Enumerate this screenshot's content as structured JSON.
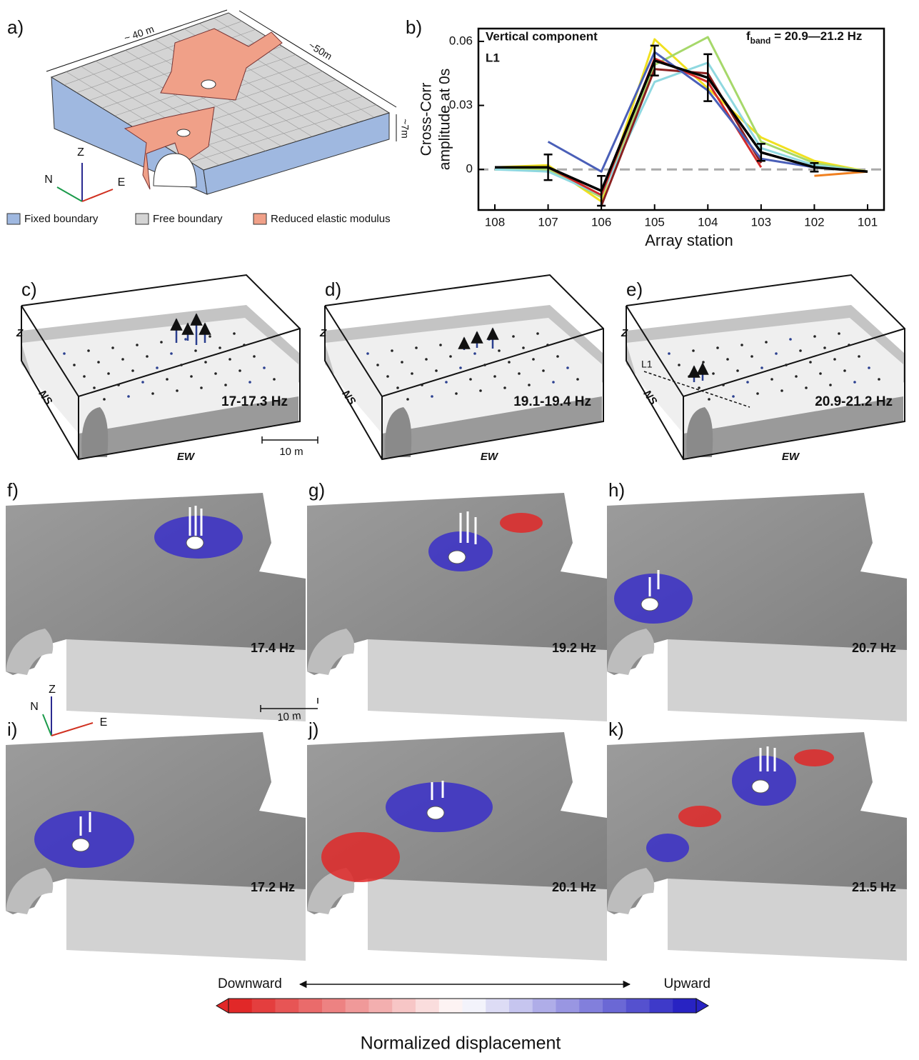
{
  "chart_data": {
    "type": "line",
    "label": "b)",
    "annotations": [
      "Vertical component",
      "L1"
    ],
    "band_label": [
      "f",
      "band",
      " = 20.9—21.2 Hz"
    ],
    "ylabel": [
      "Cross-Corr",
      "amplitude at 0s"
    ],
    "xlabel": "Array station",
    "categories": [
      "108",
      "107",
      "106",
      "105",
      "104",
      "103",
      "102",
      "101"
    ],
    "ylim": [
      -0.019,
      0.066
    ],
    "yticks": [
      0,
      0.03,
      0.06
    ],
    "hline": 0,
    "series": [
      {
        "color": "#f0e020",
        "values": [
          0.001,
          0.002,
          -0.015,
          0.061,
          0.038,
          0.015,
          0.004,
          -0.001
        ]
      },
      {
        "color": "#a6d86a",
        "values": [
          0.0,
          0.0,
          -0.013,
          0.049,
          0.062,
          0.013,
          0.003,
          -0.001
        ]
      },
      {
        "color": "#8fd8e0",
        "values": [
          0.0,
          -0.001,
          -0.012,
          0.041,
          0.05,
          0.01,
          0.002,
          -0.001
        ]
      },
      {
        "color": "#8a2020",
        "values": [
          null,
          null,
          -0.017,
          0.047,
          0.045,
          0.003,
          null,
          null
        ]
      },
      {
        "color": "#d42a2a",
        "values": [
          0.001,
          0.001,
          -0.012,
          0.052,
          0.041,
          0.001,
          null,
          null
        ]
      },
      {
        "color": "#4a5fb8",
        "values": [
          null,
          0.013,
          -0.001,
          0.055,
          0.037,
          0.005,
          0.001,
          -0.001
        ]
      },
      {
        "color": "#f08020",
        "values": [
          null,
          null,
          null,
          null,
          null,
          null,
          -0.003,
          -0.001
        ]
      },
      {
        "color": "#000000",
        "values": [
          0.001,
          0.001,
          -0.01,
          0.051,
          0.043,
          0.008,
          0.001,
          -0.001
        ],
        "errors": [
          null,
          0.006,
          0.007,
          0.007,
          0.011,
          0.004,
          0.002,
          null
        ]
      }
    ]
  },
  "panel_a": {
    "label": "a)",
    "dimensions": [
      "~ 40 m",
      "~50m",
      "~7m"
    ],
    "axes": [
      "Z",
      "N",
      "E"
    ],
    "legend": [
      {
        "name": "Fixed boundary",
        "color": "#9fb8e0"
      },
      {
        "name": "Free boundary",
        "color": "#d4d4d4"
      },
      {
        "name": "Reduced elastic modulus",
        "color": "#f0a088"
      }
    ]
  },
  "map_panels": [
    {
      "label": "c)",
      "band": "17-17.3 Hz",
      "z": "Z",
      "ns": "NS",
      "ew": "EW",
      "scale": "10 m"
    },
    {
      "label": "d)",
      "band": "19.1-19.4 Hz",
      "z": "Z",
      "ns": "NS",
      "ew": "EW"
    },
    {
      "label": "e)",
      "band": "20.9-21.2 Hz",
      "z": "Z",
      "ns": "NS",
      "ew": "EW",
      "line": "L1"
    }
  ],
  "mode_panels": [
    {
      "label": "f)",
      "freq": "17.4 Hz"
    },
    {
      "label": "g)",
      "freq": "19.2 Hz"
    },
    {
      "label": "h)",
      "freq": "20.7 Hz"
    },
    {
      "label": "i)",
      "freq": "17.2 Hz"
    },
    {
      "label": "j)",
      "freq": "20.1 Hz"
    },
    {
      "label": "k)",
      "freq": "21.5 Hz"
    }
  ],
  "mode_axes": [
    "N",
    "Z",
    "E"
  ],
  "mode_scale": "10 m",
  "colorbar": {
    "left": "Downward",
    "right": "Upward",
    "title": "Normalized displacement"
  }
}
